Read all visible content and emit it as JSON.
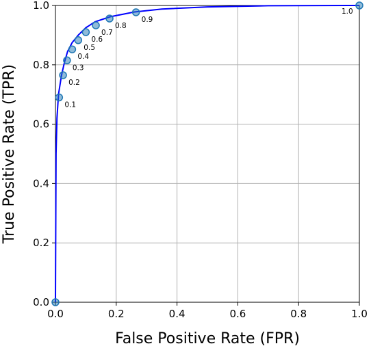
{
  "chart_data": {
    "type": "line",
    "title": "",
    "xlabel": "False Positive Rate (FPR)",
    "ylabel": "True Positive Rate (TPR)",
    "xlim": [
      0,
      1
    ],
    "ylim": [
      0,
      1
    ],
    "xticks": [
      "0.0",
      "0.2",
      "0.4",
      "0.6",
      "0.8",
      "1.0"
    ],
    "yticks": [
      "0.0",
      "0.2",
      "0.4",
      "0.6",
      "0.8",
      "1.0"
    ],
    "grid": true,
    "legend": "none",
    "curve": {
      "color": "#0000ff",
      "x": [
        0,
        0.002,
        0.005,
        0.01,
        0.02,
        0.03,
        0.04,
        0.055,
        0.075,
        0.1,
        0.13,
        0.18,
        0.26,
        0.35,
        0.5,
        0.7,
        1.0
      ],
      "y": [
        0,
        0.5,
        0.62,
        0.7,
        0.765,
        0.81,
        0.845,
        0.875,
        0.9,
        0.925,
        0.945,
        0.962,
        0.978,
        0.988,
        0.995,
        0.999,
        1.0
      ]
    },
    "thresholds": {
      "marker_color": "#1f77b4",
      "points": [
        {
          "label": "0.1",
          "x": 0.012,
          "y": 0.69
        },
        {
          "label": "0.2",
          "x": 0.025,
          "y": 0.765
        },
        {
          "label": "0.3",
          "x": 0.038,
          "y": 0.815
        },
        {
          "label": "0.4",
          "x": 0.055,
          "y": 0.852
        },
        {
          "label": "0.5",
          "x": 0.075,
          "y": 0.883
        },
        {
          "label": "0.6",
          "x": 0.1,
          "y": 0.91
        },
        {
          "label": "0.7",
          "x": 0.133,
          "y": 0.933
        },
        {
          "label": "0.8",
          "x": 0.178,
          "y": 0.956
        },
        {
          "label": "0.9",
          "x": 0.265,
          "y": 0.977
        },
        {
          "label": "1.0",
          "x": 1.0,
          "y": 1.0
        }
      ],
      "origin_marker": {
        "x": 0,
        "y": 0
      }
    }
  }
}
